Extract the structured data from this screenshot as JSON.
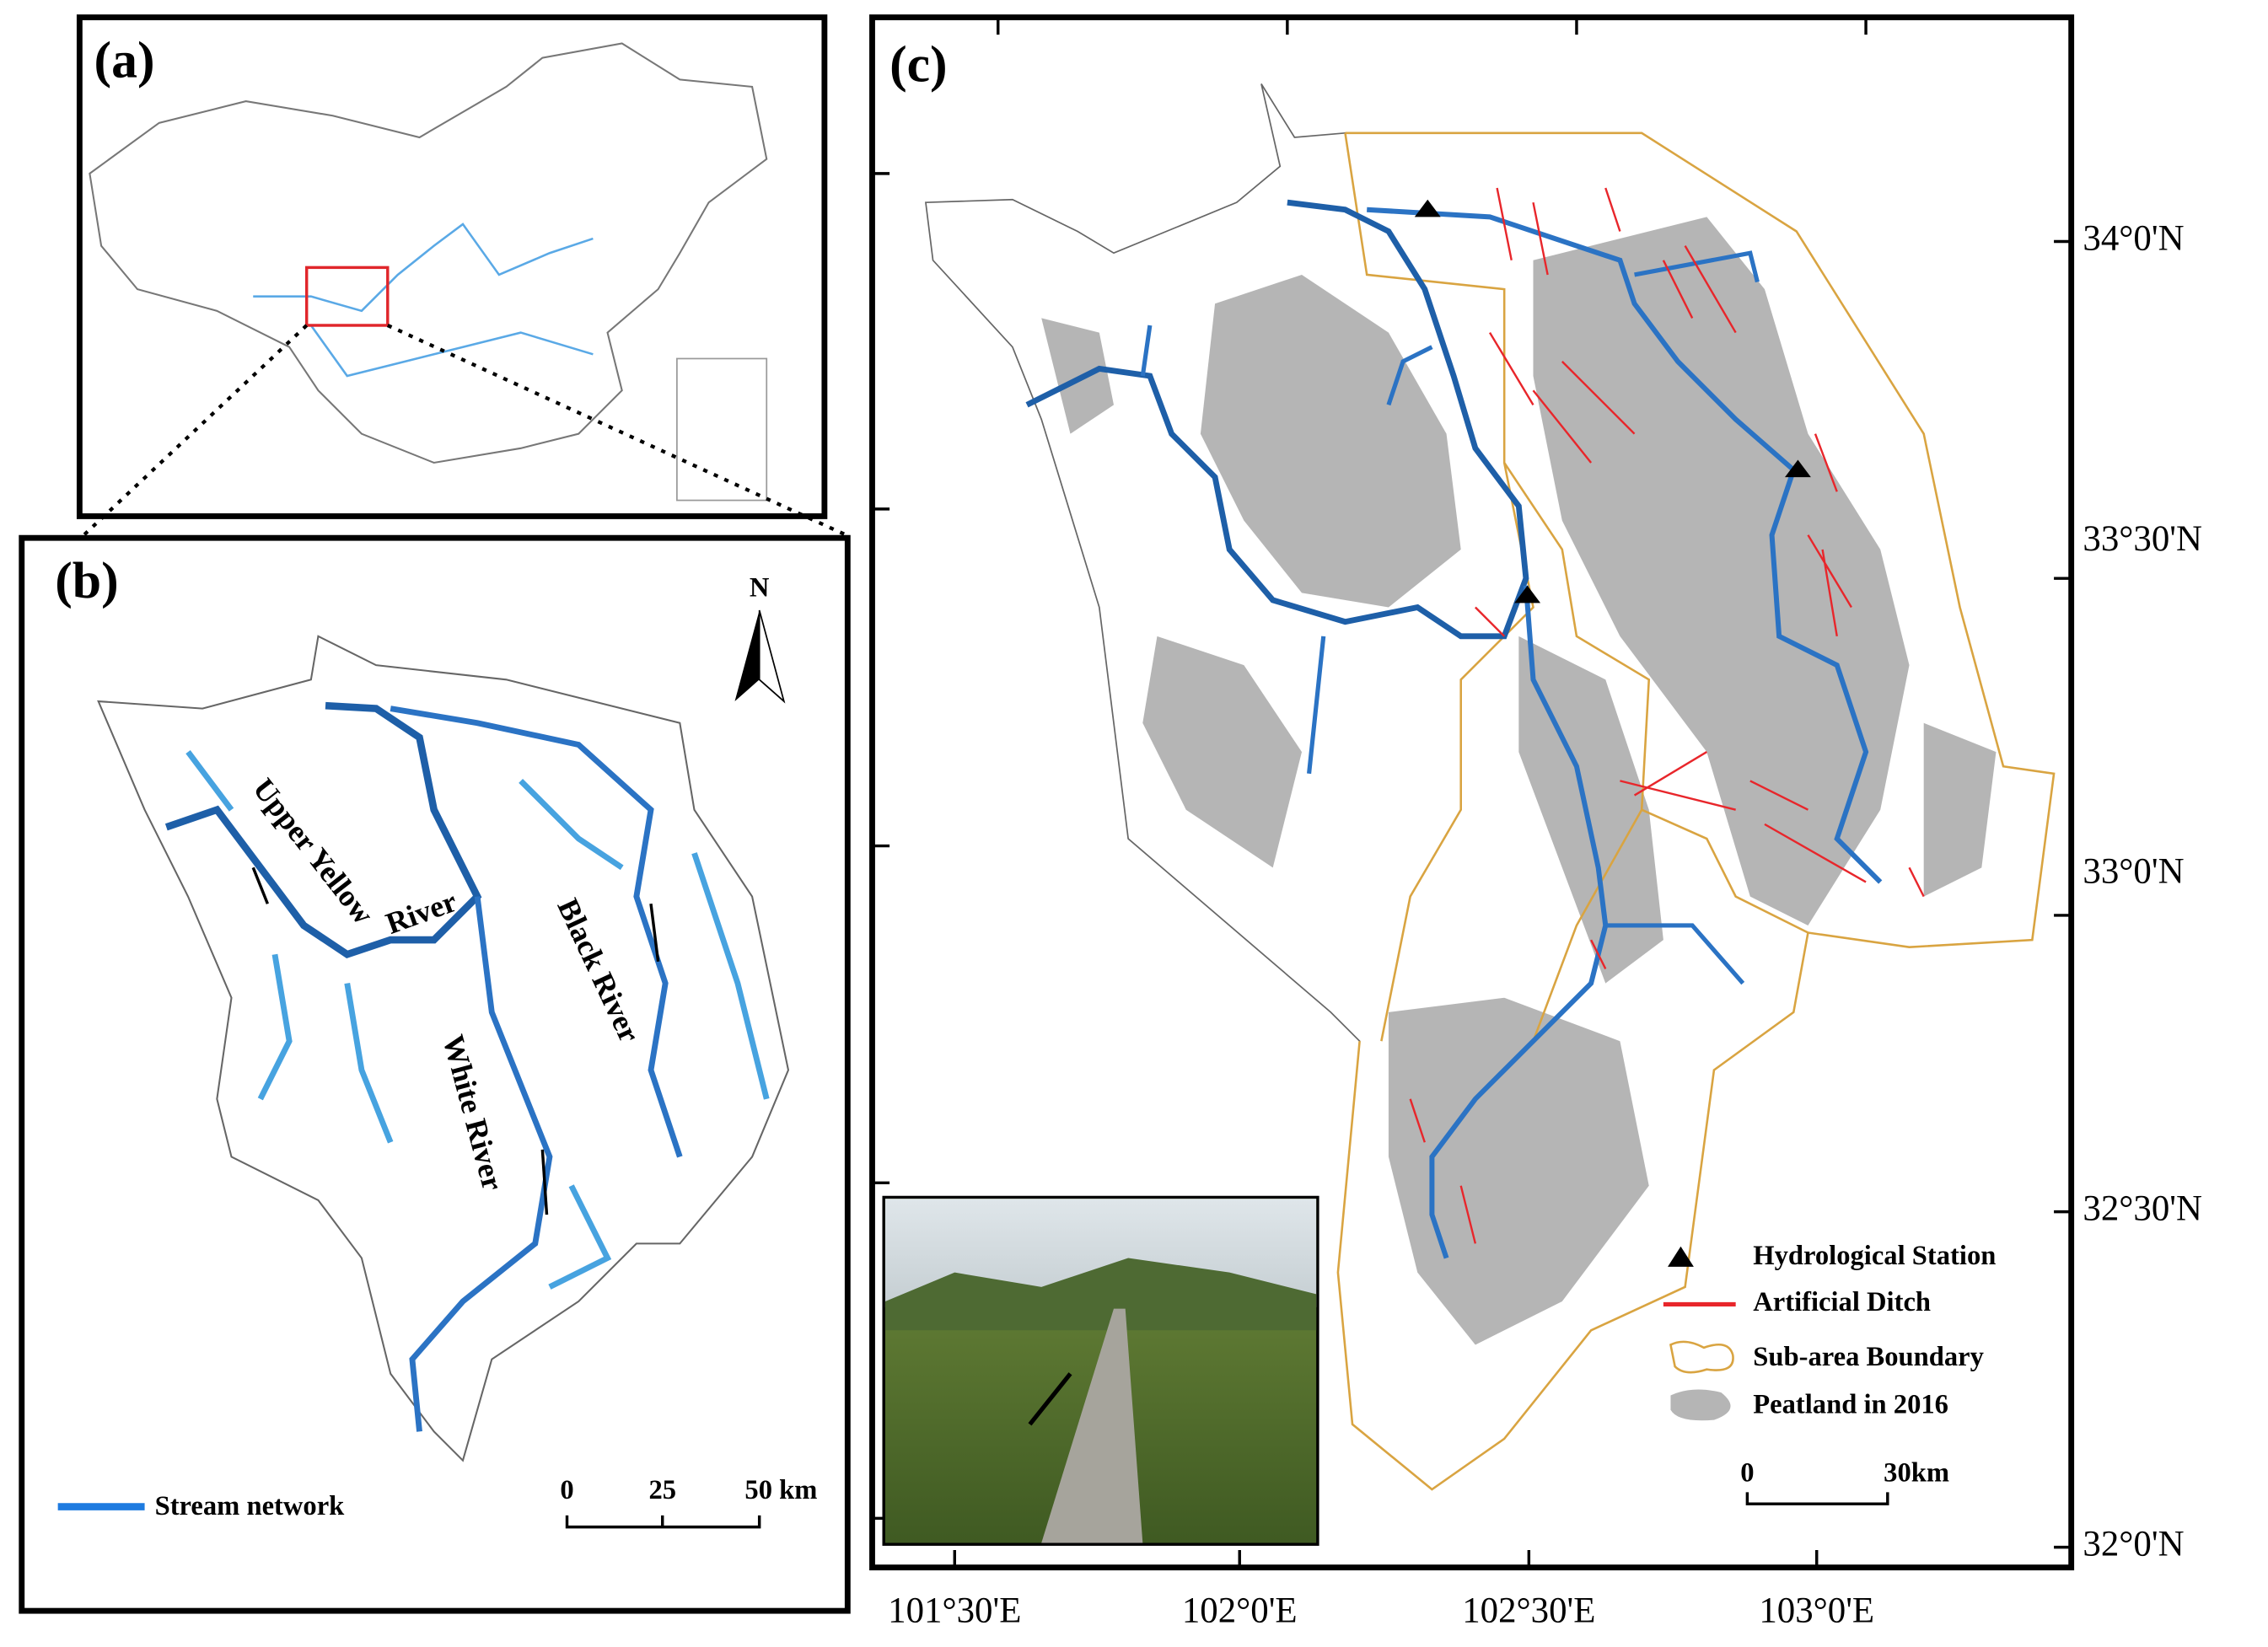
{
  "panels": [
    {
      "label": "(a)"
    },
    {
      "label": "(b)",
      "north": "N",
      "rivers": [
        "Upper Yellow",
        "River",
        "White River",
        "Black River"
      ],
      "legend": "Stream network",
      "scale": [
        "0",
        "25",
        "50 km"
      ]
    },
    {
      "label": "(c)",
      "legend": [
        "Hydrological Station",
        "Artificial Ditch",
        "Sub-area Boundary",
        "Peatland in 2016"
      ],
      "scale": [
        "0",
        "30km"
      ],
      "lat_labels": [
        "34°0'N",
        "33°30'N",
        "33°0'N",
        "32°30'N",
        "32°0'N"
      ],
      "lon_labels": [
        "101°30'E",
        "102°0'E",
        "102°30'E",
        "103°0'E"
      ]
    }
  ]
}
